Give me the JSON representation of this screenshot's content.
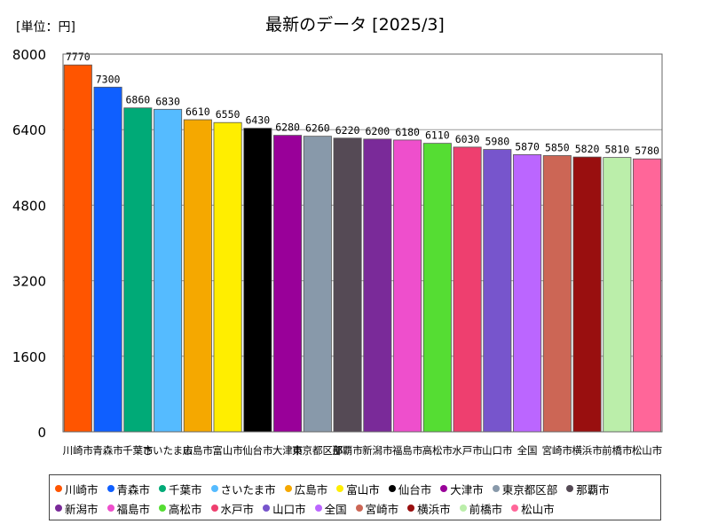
{
  "chart_data": {
    "type": "bar",
    "title": "最新のデータ [2025/3]",
    "unit_label": "[単位：円]",
    "ylim": [
      0,
      8000
    ],
    "yticks": [
      0,
      1600,
      3200,
      4800,
      6400,
      8000
    ],
    "categories": [
      "川崎市",
      "青森市",
      "千葉市",
      "さいたま市",
      "広島市",
      "富山市",
      "仙台市",
      "大津市",
      "東京都区部",
      "那覇市",
      "新潟市",
      "福島市",
      "高松市",
      "水戸市",
      "山口市",
      "全国",
      "宮崎市",
      "横浜市",
      "前橋市",
      "松山市"
    ],
    "values": [
      7770,
      7300,
      6860,
      6830,
      6610,
      6550,
      6430,
      6280,
      6260,
      6220,
      6200,
      6180,
      6110,
      6030,
      5980,
      5870,
      5850,
      5820,
      5810,
      5780
    ],
    "colors": [
      "#ff5500",
      "#0f5fff",
      "#00aa77",
      "#55bbff",
      "#f5a800",
      "#ffee00",
      "#000000",
      "#990099",
      "#8899aa",
      "#554a55",
      "#7a2a99",
      "#ee4fcc",
      "#55dd33",
      "#ee3f6f",
      "#7755cc",
      "#bb66ff",
      "#cc6655",
      "#990f0f",
      "#bbeeaa",
      "#ff6699"
    ],
    "legend_position": "bottom"
  }
}
